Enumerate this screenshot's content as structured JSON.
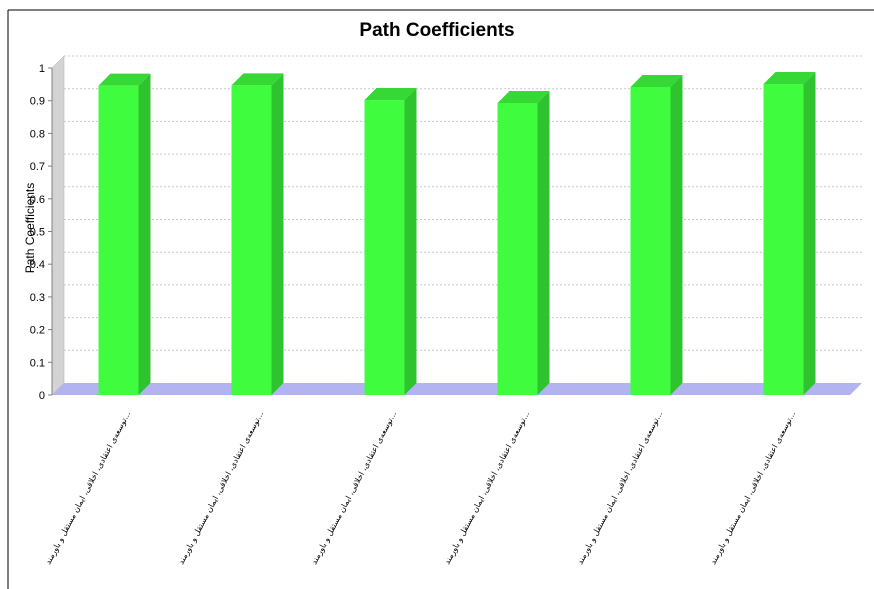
{
  "chart_data": {
    "type": "bar",
    "title": "Path Coefficients",
    "ylabel": "Path Coefficients",
    "xlabel": "",
    "ylim": [
      0,
      1
    ],
    "yticks": [
      "0",
      "0.1",
      "0.2",
      "0.3",
      "0.4",
      "0.5",
      "0.6",
      "0.7",
      "0.8",
      "0.9",
      "1"
    ],
    "grid": true,
    "categories": [
      "توسعه‌ی اعتقادی، اخلاقی، ایمان مستقل و باورمند...",
      "توسعه‌ی اعتقادی، اخلاقی، ایمان مستقل و باورمند...",
      "توسعه‌ی اعتقادی، اخلاقی، ایمان مستقل و باورمند...",
      "توسعه‌ی اعتقادی، اخلاقی، ایمان مستقل و باورمند...",
      "توسعه‌ی اعتقادی، اخلاقی، ایمان مستقل و باورمند...",
      "توسعه‌ی اعتقادی، اخلاقی، ایمان مستقل و باورمند..."
    ],
    "values": [
      0.946,
      0.947,
      0.902,
      0.893,
      0.942,
      0.951
    ],
    "colors": {
      "bar_front": "#3ffc3f",
      "bar_side": "#2fc42f",
      "bar_top": "#35d835",
      "floor": "#b3b3f2",
      "wall": "#d3d3d3",
      "grid": "#c8c8c8"
    }
  }
}
